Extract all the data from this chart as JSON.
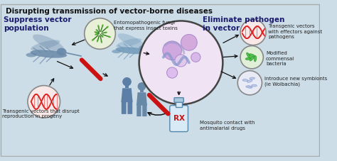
{
  "title": "Disrupting transmission of vector-borne diseases",
  "background_color": "#ccdde8",
  "left_heading": "Suppress vector\npopulation",
  "right_heading": "Eliminate pathogen\nin vector",
  "left_label1": "Entomopathogenic fungi\nthat express insect toxins",
  "left_label2": "Transgenic vectors that disrupt\nreproduction in progeny",
  "right_label1": "Transgenic vectors\nwith effectors against\npathogens",
  "right_label2": "Modified\ncommensal\nbacteria",
  "right_label3": "Introduce new symbionts\n(ie Wolbachia)",
  "right_label4": "Mosquito contact with\nantimalarial drugs",
  "border_color": "#999999",
  "mosquito_color": "#7098b8",
  "human_color": "#5b7fa6",
  "cross_color": "#cc1111",
  "font_size_title": 7.5,
  "font_size_heading": 7.5,
  "font_size_label": 5.0,
  "arrow_color": "#222222",
  "cell_fill": "#f0e0f0",
  "cell_edge": "#555555",
  "fungi_fill": "#e8f5e0",
  "dna_red_fill": "#fce8ec",
  "bacteria_fill": "#e0f5e0",
  "wolbachia_fill": "#eaeaf5"
}
